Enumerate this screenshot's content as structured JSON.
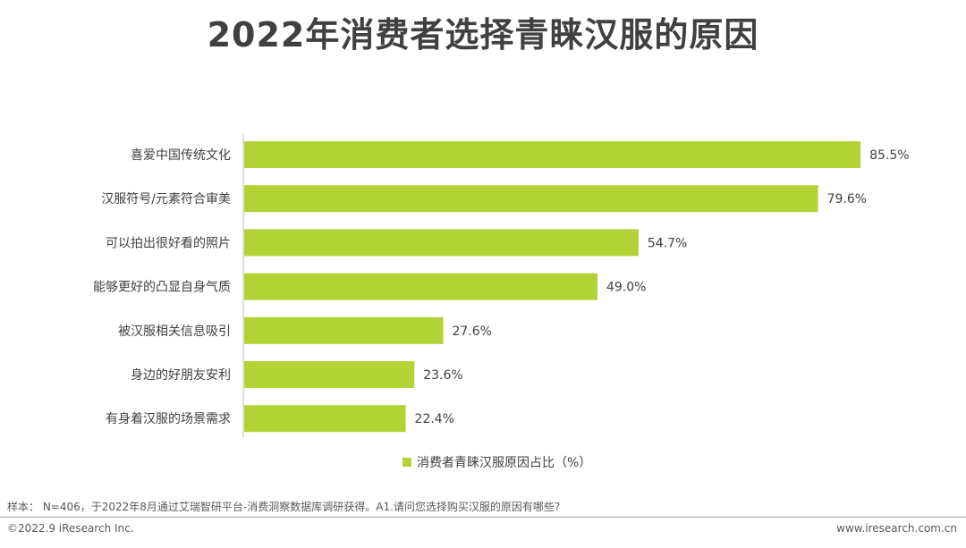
{
  "chart_data": {
    "type": "bar",
    "orientation": "horizontal",
    "title": "2022年消费者选择青睐汉服的原因",
    "categories": [
      "喜爱中国传统文化",
      "汉服符号/元素符合审美",
      "可以拍出很好看的照片",
      "能够更好的凸显自身气质",
      "被汉服相关信息吸引",
      "身边的好朋友安利",
      "有身着汉服的场景需求"
    ],
    "series": [
      {
        "name": "消费者青睐汉服原因占比（%）",
        "values": [
          85.5,
          79.6,
          54.7,
          49.0,
          27.6,
          23.6,
          22.4
        ],
        "labels": [
          "85.5%",
          "79.6%",
          "54.7%",
          "49.0%",
          "27.6%",
          "23.6%",
          "22.4%"
        ],
        "color": "#b2d235"
      }
    ],
    "xlim": [
      0,
      100
    ],
    "grid": false,
    "legend_position": "bottom-center"
  },
  "footer": {
    "source": "样本： N=406，于2022年8月通过艾瑞智研平台-消费洞察数据库调研获得。A1.请问您选择购买汉服的原因有哪些?",
    "copyright": "©2022.9 iResearch Inc.",
    "website": "www.iresearch.com.cn"
  }
}
